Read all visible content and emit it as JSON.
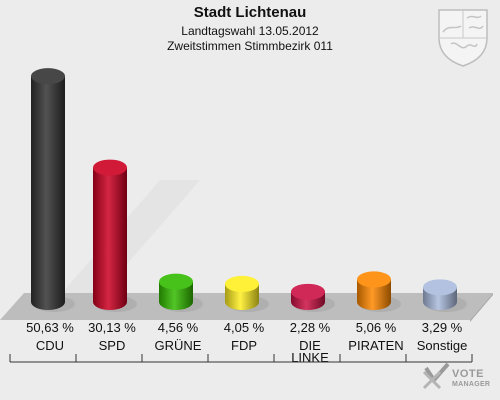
{
  "header": {
    "title": "Stadt Lichtenau",
    "subtitle1": "Landtagswahl 13.05.2012",
    "subtitle2": "Zweitstimmen Stimmbezirk 011"
  },
  "branding": {
    "logo_line1": "VOTE",
    "logo_line2": "MANAGER",
    "crest_icon": "nrw-coat-of-arms-icon"
  },
  "chart_data": {
    "type": "bar",
    "title": "Stadt Lichtenau",
    "xlabel": "",
    "ylabel": "",
    "ylim": [
      0,
      52
    ],
    "grid": false,
    "categories": [
      "CDU",
      "SPD",
      "GRÜNE",
      "FDP",
      "DIE LINKE",
      "PIRATEN",
      "Sonstige"
    ],
    "values": [
      50.63,
      30.13,
      4.56,
      4.05,
      2.28,
      5.06,
      3.29
    ],
    "value_labels": [
      "50,63 %",
      "30,13 %",
      "4,56 %",
      "4,05 %",
      "2,28 %",
      "5,06 %",
      "3,29 %"
    ],
    "colors": [
      "#333333",
      "#cc0022",
      "#33bb00",
      "#ffee22",
      "#cc1144",
      "#ff8800",
      "#aabbdd"
    ]
  }
}
